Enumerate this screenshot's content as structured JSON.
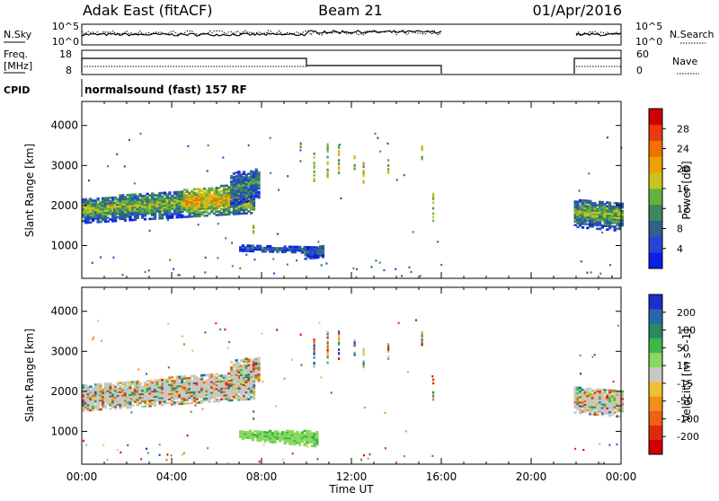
{
  "header": {
    "station": "Adak East (fitACF)",
    "beam": "Beam 21",
    "date": "01/Apr/2016"
  },
  "panels": {
    "nsky": {
      "left_label": "N.Sky",
      "right_label": "N.Search",
      "left_ticks": [
        "10^5",
        "10^0"
      ],
      "right_ticks": [
        "10^5",
        "10^0"
      ]
    },
    "freq": {
      "left_label_1": "Freq.",
      "left_label_2": "[MHz]",
      "right_label": "Nave",
      "left_ticks": [
        "18",
        "8"
      ],
      "right_ticks": [
        "60",
        "0"
      ]
    },
    "cpid": {
      "left_label": "CPID",
      "text": "normalsound (fast) 157 RF"
    }
  },
  "chart_data": [
    {
      "type": "heatmap",
      "title": "",
      "xlabel": "Time UT",
      "ylabel": "Slant Range [km]",
      "xlim": [
        0,
        24
      ],
      "ylim": [
        180,
        4600
      ],
      "x_ticks": [
        "00:00",
        "04:00",
        "08:00",
        "12:00",
        "16:00",
        "20:00",
        "00:00"
      ],
      "y_ticks": [
        "1000",
        "2000",
        "3000",
        "4000"
      ],
      "colorbar": {
        "label": "Power [dB]",
        "ticks": [
          "4",
          "8",
          "12",
          "16",
          "20",
          "24",
          "28"
        ],
        "colors": [
          "#0a1ee8",
          "#2345d8",
          "#30608c",
          "#3a8a5a",
          "#66b040",
          "#c9c41c",
          "#f0a000",
          "#f07000",
          "#e83a10",
          "#d00000"
        ]
      },
      "regions": [
        {
          "t0": 0.0,
          "t1": 7.6,
          "r0_start": 1550,
          "r1_start": 2150,
          "r0_end": 1800,
          "r1_end": 2550,
          "level": 12
        },
        {
          "t0": 6.6,
          "t1": 7.9,
          "r0_start": 1950,
          "r1_start": 2800,
          "r0_end": 2200,
          "r1_end": 2900,
          "level": 8
        },
        {
          "t0": 7.0,
          "t1": 10.5,
          "r0_start": 850,
          "r1_start": 1000,
          "r0_end": 800,
          "r1_end": 950,
          "level": 6
        },
        {
          "t0": 9.9,
          "t1": 10.7,
          "r0_start": 650,
          "r1_start": 950,
          "r0_end": 700,
          "r1_end": 1000,
          "level": 6
        },
        {
          "t0": 21.9,
          "t1": 24.0,
          "r0_start": 1450,
          "r1_start": 2150,
          "r0_end": 1350,
          "r1_end": 2050,
          "level": 12
        }
      ]
    },
    {
      "type": "heatmap",
      "title": "",
      "xlabel": "Time UT",
      "ylabel": "Slant Range [km]",
      "xlim": [
        0,
        24
      ],
      "ylim": [
        180,
        4600
      ],
      "x_ticks": [
        "00:00",
        "04:00",
        "08:00",
        "12:00",
        "16:00",
        "20:00",
        "00:00"
      ],
      "y_ticks": [
        "1000",
        "2000",
        "3000",
        "4000"
      ],
      "colorbar": {
        "label": "Velocity [m s^-1]",
        "ticks": [
          "200",
          "100",
          "50",
          "15",
          "-15",
          "-50",
          "-100",
          "-200"
        ],
        "colors": [
          "#1a2ec8",
          "#2a66b0",
          "#2a8a60",
          "#3cb84a",
          "#8ad860",
          "#c8c8c8",
          "#f0c030",
          "#f09018",
          "#f06010",
          "#e02810",
          "#d00000"
        ]
      },
      "regions": [
        {
          "t0": 0.0,
          "t1": 7.6,
          "r0_start": 1500,
          "r1_start": 2150,
          "r0_end": 1800,
          "r1_end": 2500,
          "level": 0
        },
        {
          "t0": 6.6,
          "t1": 7.9,
          "r0_start": 1950,
          "r1_start": 2750,
          "r0_end": 2200,
          "r1_end": 2850,
          "level": 0
        },
        {
          "t0": 7.0,
          "t1": 10.5,
          "r0_start": 800,
          "r1_start": 1000,
          "r0_end": 600,
          "r1_end": 1000,
          "level": 30
        },
        {
          "t0": 21.9,
          "t1": 24.0,
          "r0_start": 1450,
          "r1_start": 2100,
          "r0_end": 1350,
          "r1_end": 2000,
          "level": 0
        }
      ]
    }
  ]
}
